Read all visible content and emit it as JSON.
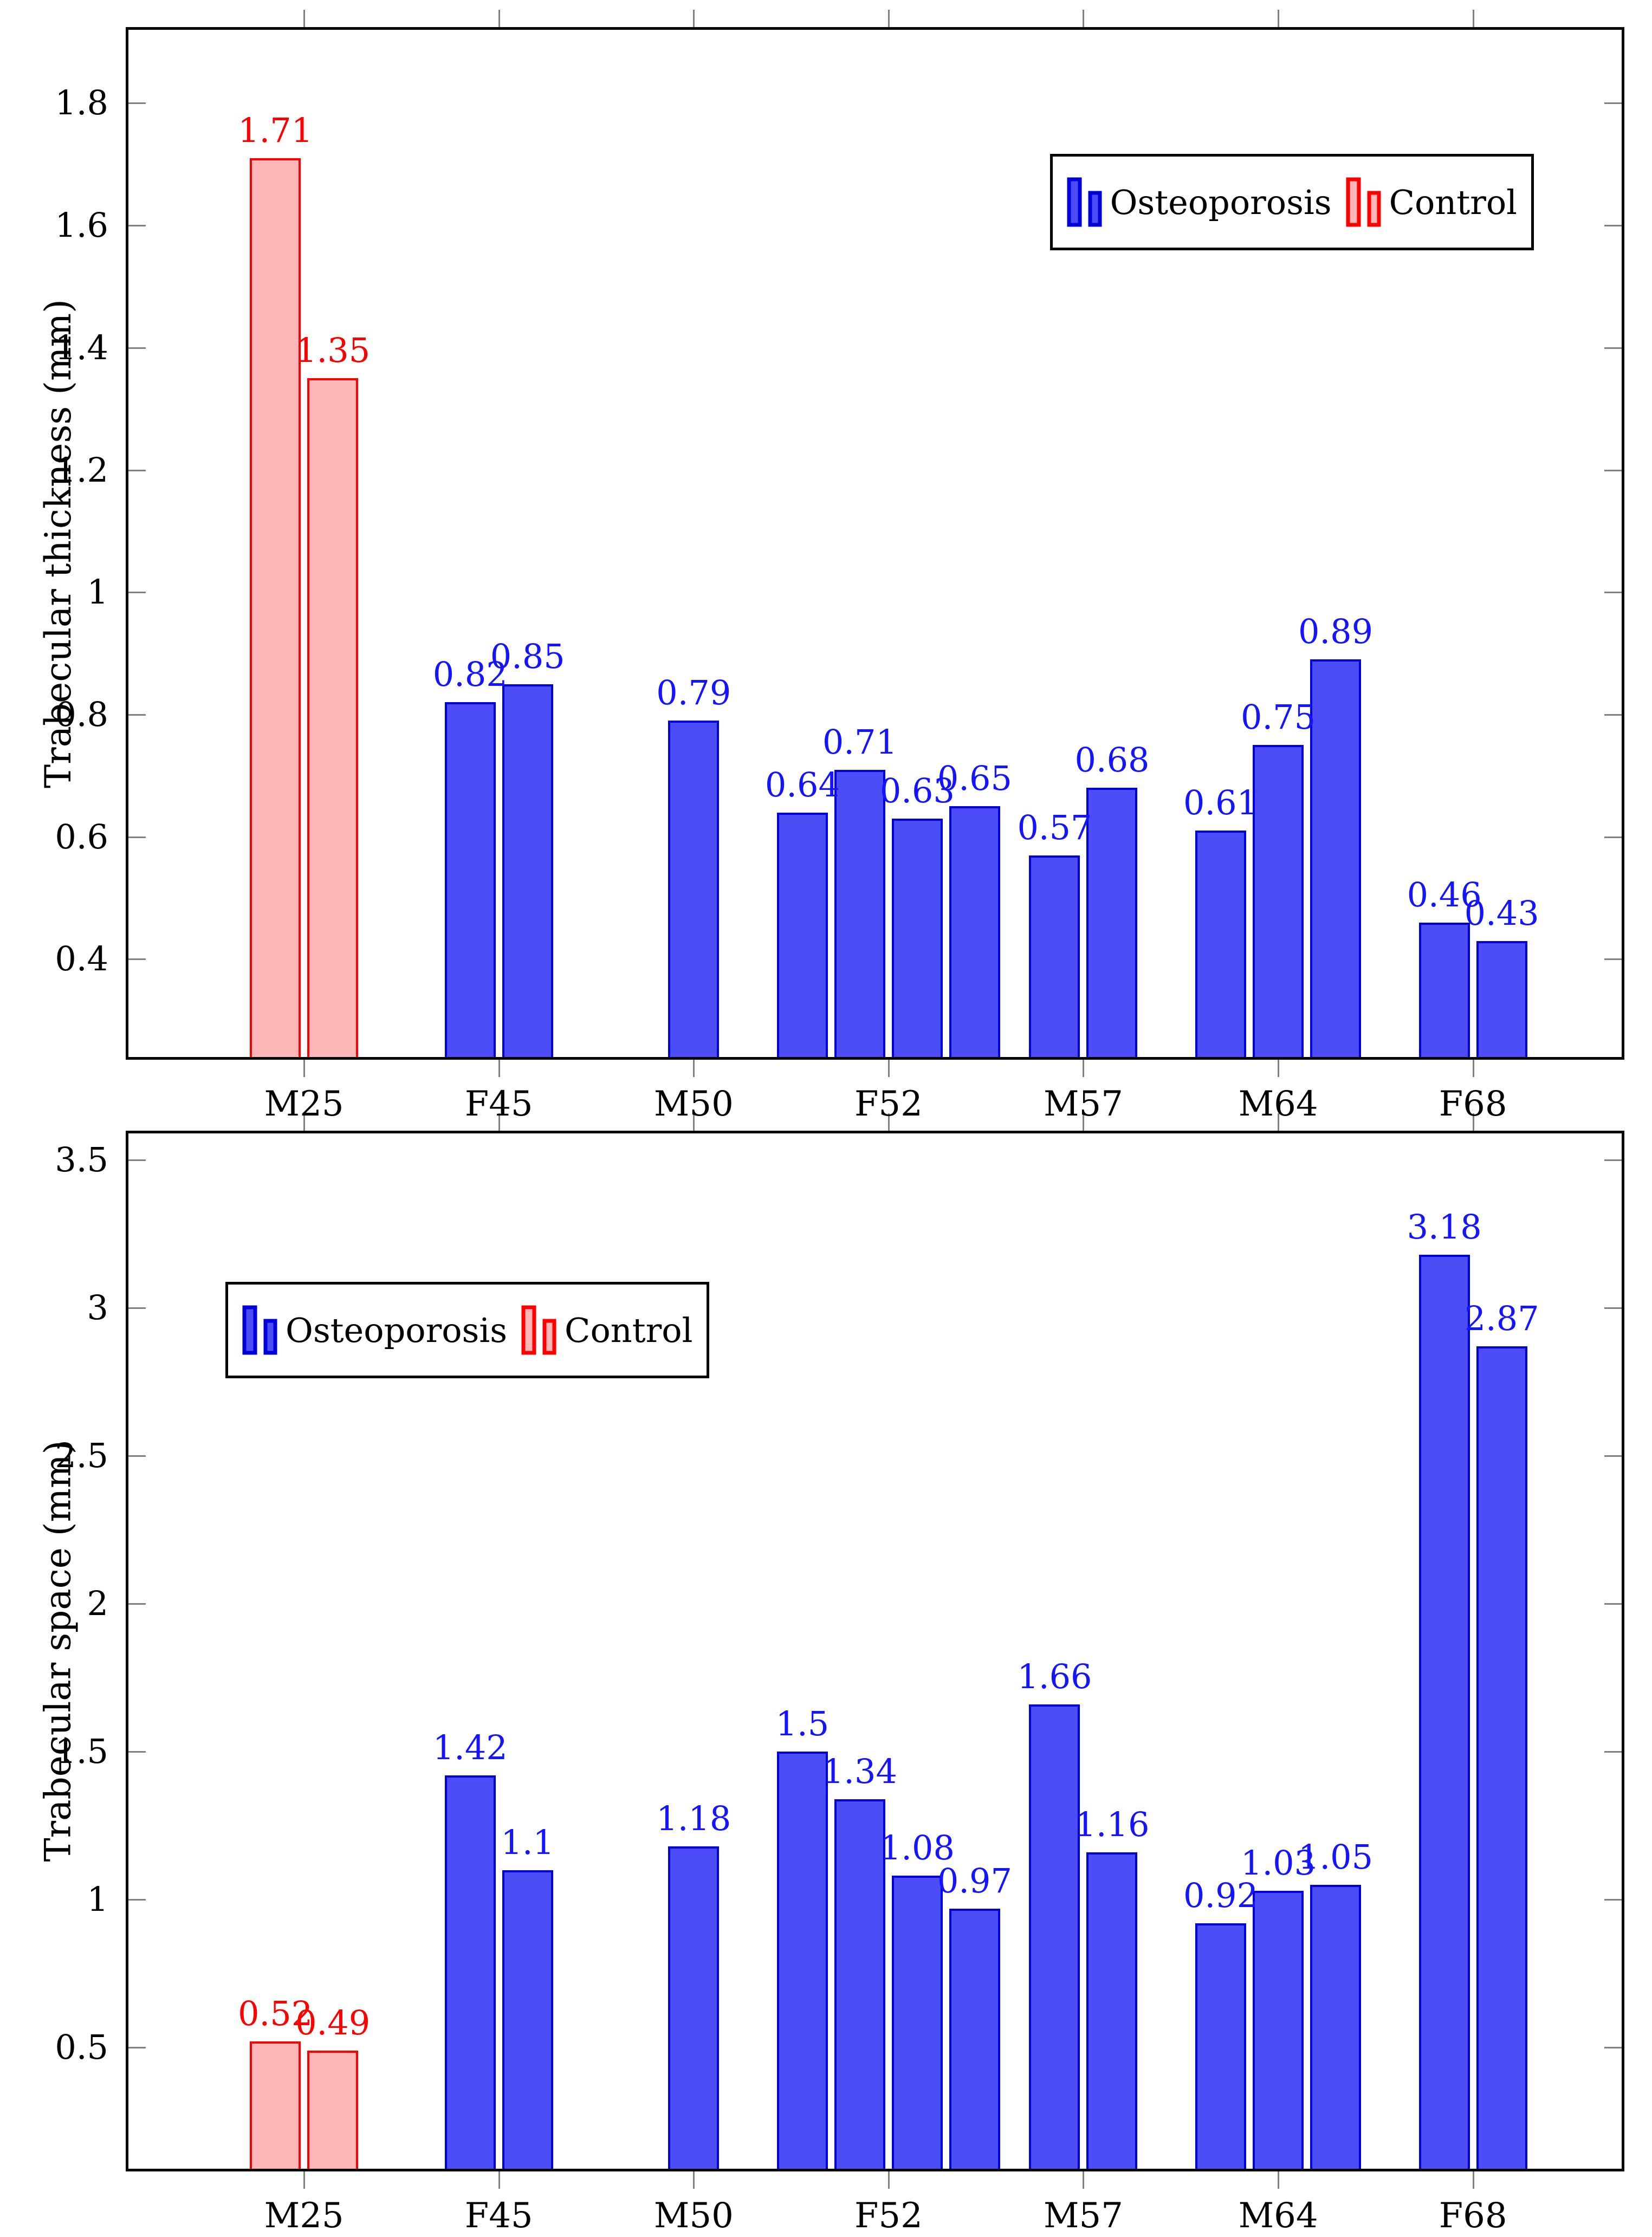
{
  "figure": {
    "background": "#ffffff"
  },
  "colors": {
    "osteoporosis_fill": "#4d4df7",
    "osteoporosis_border": "#0000d8",
    "osteoporosis_label": "#1414ff",
    "control_fill": "#ffb6b6",
    "control_border": "#ff0000",
    "control_label": "#ff0000",
    "axis": "#000000",
    "tick": "#808080",
    "text": "#000000"
  },
  "chart_data": [
    {
      "type": "bar",
      "title": "",
      "xlabel": "",
      "ylabel": "Trabecular thickness (mm)",
      "ylim": [
        0.24,
        1.92
      ],
      "yticks": [
        0.4,
        0.6,
        0.8,
        1,
        1.2,
        1.4,
        1.6,
        1.8
      ],
      "grid": false,
      "legend": {
        "position": "top-right",
        "entries": [
          {
            "label": "Osteoporosis",
            "series": "osteoporosis"
          },
          {
            "label": "Control",
            "series": "control"
          }
        ]
      },
      "categories": [
        "M25",
        "F45",
        "M50",
        "F52",
        "M57",
        "M64",
        "F68"
      ],
      "groups": [
        {
          "category": "M25",
          "series": "control",
          "values": [
            1.71,
            1.35
          ]
        },
        {
          "category": "F45",
          "series": "osteoporosis",
          "values": [
            0.82,
            0.85
          ]
        },
        {
          "category": "M50",
          "series": "osteoporosis",
          "values": [
            0.79
          ]
        },
        {
          "category": "F52",
          "series": "osteoporosis",
          "values": [
            0.64,
            0.71,
            0.63,
            0.65
          ]
        },
        {
          "category": "M57",
          "series": "osteoporosis",
          "values": [
            0.57,
            0.68
          ]
        },
        {
          "category": "M64",
          "series": "osteoporosis",
          "values": [
            0.61,
            0.75,
            0.89
          ]
        },
        {
          "category": "F68",
          "series": "osteoporosis",
          "values": [
            0.46,
            0.43
          ]
        }
      ]
    },
    {
      "type": "bar",
      "title": "",
      "xlabel": "",
      "ylabel": "Trabecular space (mm)",
      "ylim": [
        0.09,
        3.59
      ],
      "yticks": [
        0.5,
        1,
        1.5,
        2,
        2.5,
        3,
        3.5
      ],
      "grid": false,
      "legend": {
        "position": "top-left",
        "entries": [
          {
            "label": "Osteoporosis",
            "series": "osteoporosis"
          },
          {
            "label": "Control",
            "series": "control"
          }
        ]
      },
      "categories": [
        "M25",
        "F45",
        "M50",
        "F52",
        "M57",
        "M64",
        "F68"
      ],
      "groups": [
        {
          "category": "M25",
          "series": "control",
          "values": [
            0.52,
            0.49
          ]
        },
        {
          "category": "F45",
          "series": "osteoporosis",
          "values": [
            1.42,
            1.1
          ]
        },
        {
          "category": "M50",
          "series": "osteoporosis",
          "values": [
            1.18
          ]
        },
        {
          "category": "F52",
          "series": "osteoporosis",
          "values": [
            1.5,
            1.34,
            1.08,
            0.97
          ]
        },
        {
          "category": "M57",
          "series": "osteoporosis",
          "values": [
            1.66,
            1.16
          ]
        },
        {
          "category": "M64",
          "series": "osteoporosis",
          "values": [
            0.92,
            1.03,
            1.05
          ]
        },
        {
          "category": "F68",
          "series": "osteoporosis",
          "values": [
            3.18,
            2.87
          ]
        }
      ]
    }
  ]
}
